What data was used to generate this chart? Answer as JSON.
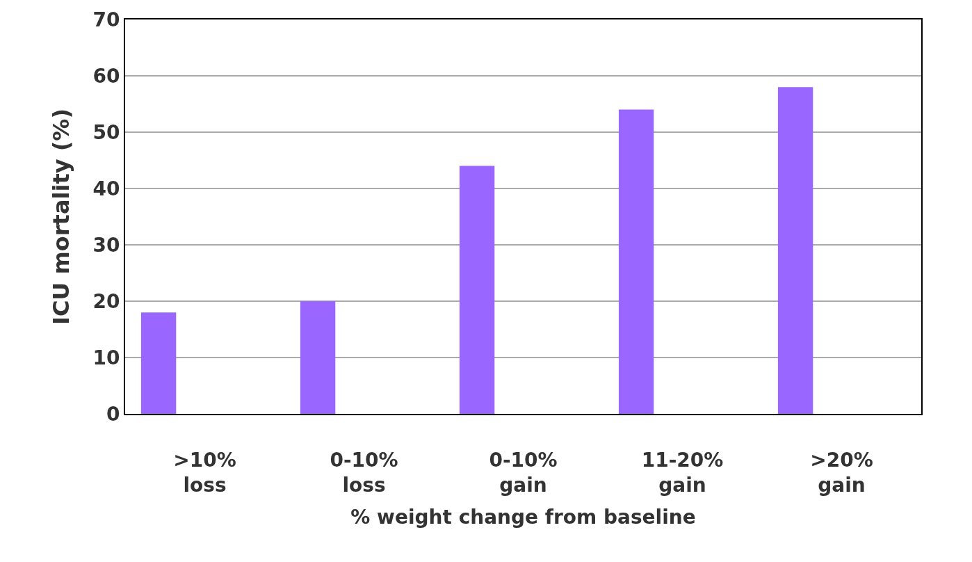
{
  "chart_data": {
    "type": "bar",
    "xlabel": "% weight change from baseline",
    "ylabel": "ICU mortality (%)",
    "categories": [
      ">10% loss",
      "0-10% loss",
      "0-10% gain",
      "11-20% gain",
      ">20% gain"
    ],
    "values": [
      18,
      20,
      44,
      54,
      58
    ],
    "color": "#9966ff",
    "ylim": [
      0,
      70
    ],
    "yticks": [
      0,
      10,
      20,
      30,
      40,
      50,
      60,
      70
    ],
    "grid": "y"
  }
}
